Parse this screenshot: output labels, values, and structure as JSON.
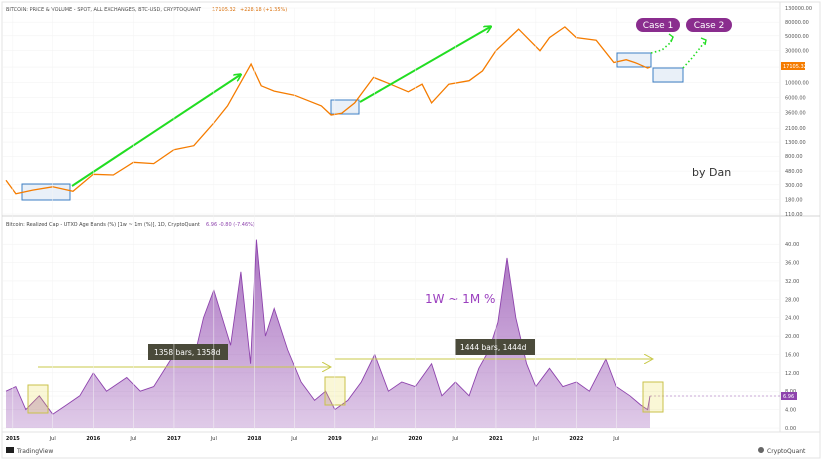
{
  "upper_panel": {
    "title": "BITCOIN: PRICE & VOLUME - SPOT, ALL EXCHANGES, BTC-USD, CRYPTOQUANT",
    "price_value": "17105.32",
    "price_change": "+228.18 (+1.35%)",
    "current_price_label": "17105.32",
    "price_badge_color": "#f57c00"
  },
  "lower_panel": {
    "title": "Bitcoin: Realized Cap - UTXO Age Bands (%) [1w ~ 1m (%)], 1D, CryptoQuant",
    "values": "6.96  -0.80 (-7.46%)",
    "current_value_label": "6.96",
    "badge_color": "#8e44ad"
  },
  "annotations": {
    "case1": "Case 1",
    "case2": "Case 2",
    "author": "by Dan",
    "band_label": "1W ~ 1M %",
    "cycle1": "1358 bars, 1358d",
    "cycle2": "1444 bars, 1444d"
  },
  "footer": {
    "tradingview": "TradingView",
    "cryptoquant": "CryptoQuant"
  },
  "chart_data": [
    {
      "type": "line",
      "scale": "log",
      "yticks": [
        "130000.00",
        "80000.00",
        "50000.00",
        "30000.00",
        "17105.32",
        "10000.00",
        "6000.00",
        "3600.00",
        "2100.00",
        "1300.00",
        "800.00",
        "480.00",
        "300.00",
        "180.00",
        "110.00"
      ],
      "series": [
        {
          "color": "#f57c00",
          "x": [
            "2014-12-01",
            "2015-01-15",
            "2015-04-01",
            "2015-07-01",
            "2015-10-01",
            "2016-01-01",
            "2016-04-01",
            "2016-07-01",
            "2016-10-01",
            "2017-01-01",
            "2017-04-01",
            "2017-07-01",
            "2017-09-01",
            "2017-12-17",
            "2018-02-01",
            "2018-04-01",
            "2018-07-01",
            "2018-11-01",
            "2018-12-15",
            "2019-02-01",
            "2019-04-01",
            "2019-06-26",
            "2019-09-01",
            "2019-12-01",
            "2020-02-01",
            "2020-03-15",
            "2020-06-01",
            "2020-09-01",
            "2020-11-01",
            "2021-01-01",
            "2021-04-14",
            "2021-07-20",
            "2021-09-01",
            "2021-11-10",
            "2022-01-01",
            "2022-04-01",
            "2022-06-20",
            "2022-08-15",
            "2022-10-01",
            "2022-11-20",
            "2022-12-01"
          ],
          "y": [
            350,
            220,
            250,
            280,
            240,
            430,
            420,
            650,
            620,
            1000,
            1150,
            2500,
            4500,
            19000,
            9000,
            7500,
            6500,
            4500,
            3300,
            3500,
            5000,
            12000,
            9800,
            7300,
            9500,
            5000,
            9500,
            10700,
            15000,
            30000,
            63000,
            30000,
            47000,
            68000,
            47000,
            43000,
            20000,
            22000,
            19500,
            16500,
            17105
          ]
        }
      ]
    },
    {
      "type": "area",
      "yticks": [
        "40.00",
        "36.00",
        "32.00",
        "28.00",
        "24.00",
        "20.00",
        "16.00",
        "12.00",
        "8.00",
        "6.96",
        "4.00",
        "0.00"
      ],
      "ylim": [
        0,
        42
      ],
      "series": [
        {
          "color": "#8e44ad",
          "x": [
            "2014-12-01",
            "2015-01-15",
            "2015-03-01",
            "2015-05-01",
            "2015-07-01",
            "2015-09-01",
            "2015-11-01",
            "2016-01-01",
            "2016-03-01",
            "2016-06-01",
            "2016-08-01",
            "2016-10-01",
            "2017-01-01",
            "2017-04-01",
            "2017-05-15",
            "2017-07-01",
            "2017-09-15",
            "2017-11-01",
            "2017-12-15",
            "2018-01-10",
            "2018-02-20",
            "2018-04-01",
            "2018-06-01",
            "2018-08-01",
            "2018-10-01",
            "2018-11-20",
            "2019-01-01",
            "2019-03-01",
            "2019-05-01",
            "2019-07-01",
            "2019-09-01",
            "2019-11-01",
            "2020-01-01",
            "2020-03-15",
            "2020-05-01",
            "2020-07-01",
            "2020-09-01",
            "2020-10-15",
            "2020-12-01",
            "2021-01-10",
            "2021-02-20",
            "2021-04-01",
            "2021-05-20",
            "2021-07-01",
            "2021-09-01",
            "2021-11-01",
            "2022-01-01",
            "2022-03-01",
            "2022-05-15",
            "2022-07-01",
            "2022-09-01",
            "2022-10-20",
            "2022-11-20",
            "2022-12-01"
          ],
          "y": [
            8,
            9,
            4,
            7,
            3,
            5,
            7,
            12,
            8,
            11,
            8,
            9,
            16,
            15,
            24,
            30,
            18,
            34,
            14,
            41,
            20,
            26,
            17,
            10,
            6,
            8,
            4,
            6,
            10,
            16,
            8,
            10,
            9,
            14,
            7,
            10,
            7,
            13,
            17,
            23,
            37,
            24,
            14,
            9,
            13,
            9,
            10,
            8,
            15,
            9,
            7,
            5,
            4,
            6.96
          ]
        }
      ]
    }
  ]
}
